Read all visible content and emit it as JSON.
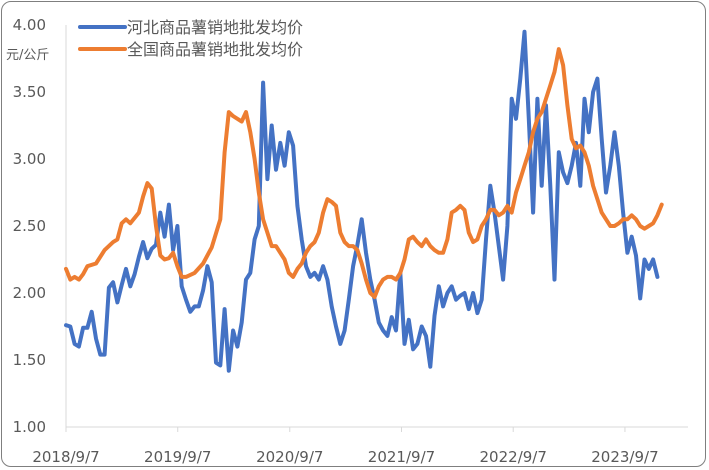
{
  "chart_data": {
    "type": "line",
    "title": "",
    "ylabel": "元/公斤",
    "xlabel": "",
    "ylim": [
      1.0,
      4.0
    ],
    "y_ticks": [
      "1.00",
      "1.50",
      "2.00",
      "2.50",
      "3.00",
      "3.50",
      "4.00"
    ],
    "x_tick_labels": [
      "2018/9/7",
      "2019/9/7",
      "2020/9/7",
      "2021/9/7",
      "2022/9/7",
      "2023/9/7"
    ],
    "x_range": [
      "2018-09-07",
      "2024-03-31"
    ],
    "legend_position": "top-left",
    "grid": false,
    "series": [
      {
        "name": "河北商品薯销地批发均价",
        "color": "#4472C4",
        "points": [
          [
            "2018-09-07",
            1.76
          ],
          [
            "2018-09-21",
            1.75
          ],
          [
            "2018-10-05",
            1.62
          ],
          [
            "2018-10-19",
            1.6
          ],
          [
            "2018-11-02",
            1.74
          ],
          [
            "2018-11-16",
            1.74
          ],
          [
            "2018-11-30",
            1.86
          ],
          [
            "2018-12-14",
            1.66
          ],
          [
            "2018-12-28",
            1.54
          ],
          [
            "2019-01-11",
            1.54
          ],
          [
            "2019-01-25",
            2.04
          ],
          [
            "2019-02-08",
            2.08
          ],
          [
            "2019-02-22",
            1.93
          ],
          [
            "2019-03-08",
            2.06
          ],
          [
            "2019-03-22",
            2.18
          ],
          [
            "2019-04-05",
            2.05
          ],
          [
            "2019-04-19",
            2.14
          ],
          [
            "2019-05-03",
            2.27
          ],
          [
            "2019-05-17",
            2.38
          ],
          [
            "2019-05-31",
            2.26
          ],
          [
            "2019-06-14",
            2.33
          ],
          [
            "2019-06-28",
            2.36
          ],
          [
            "2019-07-12",
            2.6
          ],
          [
            "2019-07-26",
            2.42
          ],
          [
            "2019-08-09",
            2.66
          ],
          [
            "2019-08-23",
            2.32
          ],
          [
            "2019-09-06",
            2.5
          ],
          [
            "2019-09-20",
            2.05
          ],
          [
            "2019-10-04",
            1.95
          ],
          [
            "2019-10-18",
            1.86
          ],
          [
            "2019-11-01",
            1.9
          ],
          [
            "2019-11-15",
            1.9
          ],
          [
            "2019-11-29",
            2.02
          ],
          [
            "2019-12-13",
            2.2
          ],
          [
            "2019-12-27",
            2.08
          ],
          [
            "2020-01-10",
            1.48
          ],
          [
            "2020-01-24",
            1.46
          ],
          [
            "2020-02-07",
            1.88
          ],
          [
            "2020-02-21",
            1.42
          ],
          [
            "2020-03-06",
            1.72
          ],
          [
            "2020-03-20",
            1.6
          ],
          [
            "2020-04-03",
            1.78
          ],
          [
            "2020-04-17",
            2.1
          ],
          [
            "2020-05-01",
            2.15
          ],
          [
            "2020-05-15",
            2.4
          ],
          [
            "2020-05-29",
            2.5
          ],
          [
            "2020-06-12",
            3.57
          ],
          [
            "2020-06-26",
            2.85
          ],
          [
            "2020-07-10",
            3.25
          ],
          [
            "2020-07-24",
            2.92
          ],
          [
            "2020-08-07",
            3.12
          ],
          [
            "2020-08-21",
            2.95
          ],
          [
            "2020-09-04",
            3.2
          ],
          [
            "2020-09-18",
            3.1
          ],
          [
            "2020-10-02",
            2.65
          ],
          [
            "2020-10-16",
            2.4
          ],
          [
            "2020-10-30",
            2.2
          ],
          [
            "2020-11-13",
            2.12
          ],
          [
            "2020-11-27",
            2.15
          ],
          [
            "2020-12-11",
            2.1
          ],
          [
            "2020-12-25",
            2.2
          ],
          [
            "2021-01-08",
            2.1
          ],
          [
            "2021-01-22",
            1.9
          ],
          [
            "2021-02-05",
            1.75
          ],
          [
            "2021-02-19",
            1.62
          ],
          [
            "2021-03-05",
            1.72
          ],
          [
            "2021-03-19",
            1.95
          ],
          [
            "2021-04-02",
            2.2
          ],
          [
            "2021-04-16",
            2.36
          ],
          [
            "2021-04-30",
            2.55
          ],
          [
            "2021-05-14",
            2.3
          ],
          [
            "2021-05-28",
            2.1
          ],
          [
            "2021-06-11",
            1.95
          ],
          [
            "2021-06-25",
            1.78
          ],
          [
            "2021-07-09",
            1.72
          ],
          [
            "2021-07-23",
            1.68
          ],
          [
            "2021-08-06",
            1.82
          ],
          [
            "2021-08-20",
            1.72
          ],
          [
            "2021-09-03",
            2.15
          ],
          [
            "2021-09-17",
            1.62
          ],
          [
            "2021-10-01",
            1.8
          ],
          [
            "2021-10-15",
            1.58
          ],
          [
            "2021-10-29",
            1.62
          ],
          [
            "2021-11-12",
            1.75
          ],
          [
            "2021-11-26",
            1.68
          ],
          [
            "2021-12-10",
            1.45
          ],
          [
            "2021-12-24",
            1.83
          ],
          [
            "2022-01-07",
            2.05
          ],
          [
            "2022-01-21",
            1.9
          ],
          [
            "2022-02-04",
            2.0
          ],
          [
            "2022-02-18",
            2.05
          ],
          [
            "2022-03-04",
            1.95
          ],
          [
            "2022-03-18",
            1.98
          ],
          [
            "2022-04-01",
            2.0
          ],
          [
            "2022-04-15",
            1.88
          ],
          [
            "2022-04-29",
            2.0
          ],
          [
            "2022-05-13",
            1.85
          ],
          [
            "2022-05-27",
            1.95
          ],
          [
            "2022-06-10",
            2.4
          ],
          [
            "2022-06-24",
            2.8
          ],
          [
            "2022-07-08",
            2.6
          ],
          [
            "2022-07-22",
            2.35
          ],
          [
            "2022-08-05",
            2.1
          ],
          [
            "2022-08-19",
            2.5
          ],
          [
            "2022-09-02",
            3.45
          ],
          [
            "2022-09-16",
            3.3
          ],
          [
            "2022-09-30",
            3.6
          ],
          [
            "2022-10-14",
            3.95
          ],
          [
            "2022-10-28",
            3.3
          ],
          [
            "2022-11-11",
            2.6
          ],
          [
            "2022-11-25",
            3.45
          ],
          [
            "2022-12-09",
            2.8
          ],
          [
            "2022-12-23",
            3.4
          ],
          [
            "2023-01-06",
            2.8
          ],
          [
            "2023-01-20",
            2.1
          ],
          [
            "2023-02-03",
            3.05
          ],
          [
            "2023-02-17",
            2.9
          ],
          [
            "2023-03-03",
            2.82
          ],
          [
            "2023-03-17",
            2.95
          ],
          [
            "2023-03-31",
            3.12
          ],
          [
            "2023-04-14",
            2.8
          ],
          [
            "2023-04-28",
            3.45
          ],
          [
            "2023-05-12",
            3.2
          ],
          [
            "2023-05-26",
            3.5
          ],
          [
            "2023-06-09",
            3.6
          ],
          [
            "2023-06-23",
            3.15
          ],
          [
            "2023-07-07",
            2.75
          ],
          [
            "2023-07-21",
            2.95
          ],
          [
            "2023-08-04",
            3.2
          ],
          [
            "2023-08-18",
            2.95
          ],
          [
            "2023-09-01",
            2.6
          ],
          [
            "2023-09-15",
            2.3
          ],
          [
            "2023-09-29",
            2.42
          ],
          [
            "2023-10-13",
            2.28
          ],
          [
            "2023-10-27",
            1.96
          ],
          [
            "2023-11-10",
            2.25
          ],
          [
            "2023-11-24",
            2.18
          ],
          [
            "2023-12-08",
            2.25
          ],
          [
            "2023-12-22",
            2.12
          ]
        ]
      },
      {
        "name": "全国商品薯销地批发均价",
        "color": "#ED7D31",
        "points": [
          [
            "2018-09-07",
            2.18
          ],
          [
            "2018-09-21",
            2.1
          ],
          [
            "2018-10-05",
            2.12
          ],
          [
            "2018-10-19",
            2.1
          ],
          [
            "2018-11-02",
            2.14
          ],
          [
            "2018-11-16",
            2.2
          ],
          [
            "2018-12-14",
            2.22
          ],
          [
            "2019-01-11",
            2.32
          ],
          [
            "2019-02-08",
            2.38
          ],
          [
            "2019-02-22",
            2.4
          ],
          [
            "2019-03-08",
            2.52
          ],
          [
            "2019-03-22",
            2.55
          ],
          [
            "2019-04-05",
            2.52
          ],
          [
            "2019-05-03",
            2.6
          ],
          [
            "2019-05-17",
            2.72
          ],
          [
            "2019-05-31",
            2.82
          ],
          [
            "2019-06-14",
            2.78
          ],
          [
            "2019-06-28",
            2.5
          ],
          [
            "2019-07-12",
            2.28
          ],
          [
            "2019-07-26",
            2.25
          ],
          [
            "2019-08-09",
            2.26
          ],
          [
            "2019-08-23",
            2.3
          ],
          [
            "2019-09-06",
            2.2
          ],
          [
            "2019-09-20",
            2.12
          ],
          [
            "2019-10-04",
            2.12
          ],
          [
            "2019-11-01",
            2.15
          ],
          [
            "2019-11-29",
            2.22
          ],
          [
            "2019-12-27",
            2.34
          ],
          [
            "2020-01-24",
            2.55
          ],
          [
            "2020-02-07",
            3.05
          ],
          [
            "2020-02-21",
            3.35
          ],
          [
            "2020-03-06",
            3.32
          ],
          [
            "2020-03-20",
            3.3
          ],
          [
            "2020-04-03",
            3.28
          ],
          [
            "2020-04-17",
            3.35
          ],
          [
            "2020-05-01",
            3.2
          ],
          [
            "2020-05-15",
            3.0
          ],
          [
            "2020-05-29",
            2.75
          ],
          [
            "2020-06-12",
            2.55
          ],
          [
            "2020-06-26",
            2.45
          ],
          [
            "2020-07-10",
            2.35
          ],
          [
            "2020-07-24",
            2.35
          ],
          [
            "2020-08-21",
            2.25
          ],
          [
            "2020-09-04",
            2.15
          ],
          [
            "2020-09-18",
            2.12
          ],
          [
            "2020-10-02",
            2.18
          ],
          [
            "2020-10-16",
            2.22
          ],
          [
            "2020-10-30",
            2.3
          ],
          [
            "2020-11-13",
            2.35
          ],
          [
            "2020-11-27",
            2.38
          ],
          [
            "2020-12-11",
            2.45
          ],
          [
            "2020-12-25",
            2.6
          ],
          [
            "2021-01-08",
            2.7
          ],
          [
            "2021-01-22",
            2.68
          ],
          [
            "2021-02-05",
            2.65
          ],
          [
            "2021-02-19",
            2.45
          ],
          [
            "2021-03-05",
            2.38
          ],
          [
            "2021-03-19",
            2.35
          ],
          [
            "2021-04-02",
            2.35
          ],
          [
            "2021-04-16",
            2.32
          ],
          [
            "2021-04-30",
            2.22
          ],
          [
            "2021-05-14",
            2.1
          ],
          [
            "2021-05-28",
            2.0
          ],
          [
            "2021-06-11",
            1.97
          ],
          [
            "2021-06-25",
            2.05
          ],
          [
            "2021-07-09",
            2.1
          ],
          [
            "2021-07-23",
            2.12
          ],
          [
            "2021-08-06",
            2.12
          ],
          [
            "2021-08-20",
            2.1
          ],
          [
            "2021-09-03",
            2.15
          ],
          [
            "2021-09-17",
            2.25
          ],
          [
            "2021-10-01",
            2.4
          ],
          [
            "2021-10-15",
            2.42
          ],
          [
            "2021-10-29",
            2.38
          ],
          [
            "2021-11-12",
            2.35
          ],
          [
            "2021-11-26",
            2.4
          ],
          [
            "2021-12-10",
            2.35
          ],
          [
            "2021-12-24",
            2.32
          ],
          [
            "2022-01-07",
            2.3
          ],
          [
            "2022-01-21",
            2.3
          ],
          [
            "2022-02-04",
            2.4
          ],
          [
            "2022-02-18",
            2.6
          ],
          [
            "2022-03-04",
            2.62
          ],
          [
            "2022-03-18",
            2.65
          ],
          [
            "2022-04-01",
            2.62
          ],
          [
            "2022-04-15",
            2.45
          ],
          [
            "2022-04-29",
            2.38
          ],
          [
            "2022-05-13",
            2.4
          ],
          [
            "2022-05-27",
            2.5
          ],
          [
            "2022-06-10",
            2.55
          ],
          [
            "2022-06-24",
            2.62
          ],
          [
            "2022-07-08",
            2.62
          ],
          [
            "2022-07-22",
            2.58
          ],
          [
            "2022-08-05",
            2.6
          ],
          [
            "2022-08-19",
            2.65
          ],
          [
            "2022-09-02",
            2.6
          ],
          [
            "2022-09-16",
            2.75
          ],
          [
            "2022-09-30",
            2.85
          ],
          [
            "2022-10-14",
            2.95
          ],
          [
            "2022-10-28",
            3.05
          ],
          [
            "2022-11-11",
            3.2
          ],
          [
            "2022-11-25",
            3.3
          ],
          [
            "2022-12-09",
            3.35
          ],
          [
            "2022-12-23",
            3.45
          ],
          [
            "2023-01-06",
            3.55
          ],
          [
            "2023-01-20",
            3.65
          ],
          [
            "2023-02-03",
            3.82
          ],
          [
            "2023-02-17",
            3.7
          ],
          [
            "2023-03-03",
            3.4
          ],
          [
            "2023-03-17",
            3.15
          ],
          [
            "2023-03-31",
            3.08
          ],
          [
            "2023-04-14",
            3.1
          ],
          [
            "2023-04-28",
            3.05
          ],
          [
            "2023-05-12",
            2.95
          ],
          [
            "2023-05-26",
            2.8
          ],
          [
            "2023-06-09",
            2.7
          ],
          [
            "2023-06-23",
            2.6
          ],
          [
            "2023-07-07",
            2.55
          ],
          [
            "2023-07-21",
            2.5
          ],
          [
            "2023-08-04",
            2.5
          ],
          [
            "2023-08-18",
            2.52
          ],
          [
            "2023-09-01",
            2.55
          ],
          [
            "2023-09-15",
            2.55
          ],
          [
            "2023-09-29",
            2.58
          ],
          [
            "2023-10-13",
            2.55
          ],
          [
            "2023-10-27",
            2.5
          ],
          [
            "2023-11-10",
            2.48
          ],
          [
            "2023-11-24",
            2.5
          ],
          [
            "2023-12-08",
            2.52
          ],
          [
            "2023-12-22",
            2.58
          ],
          [
            "2024-01-05",
            2.66
          ]
        ]
      }
    ]
  }
}
